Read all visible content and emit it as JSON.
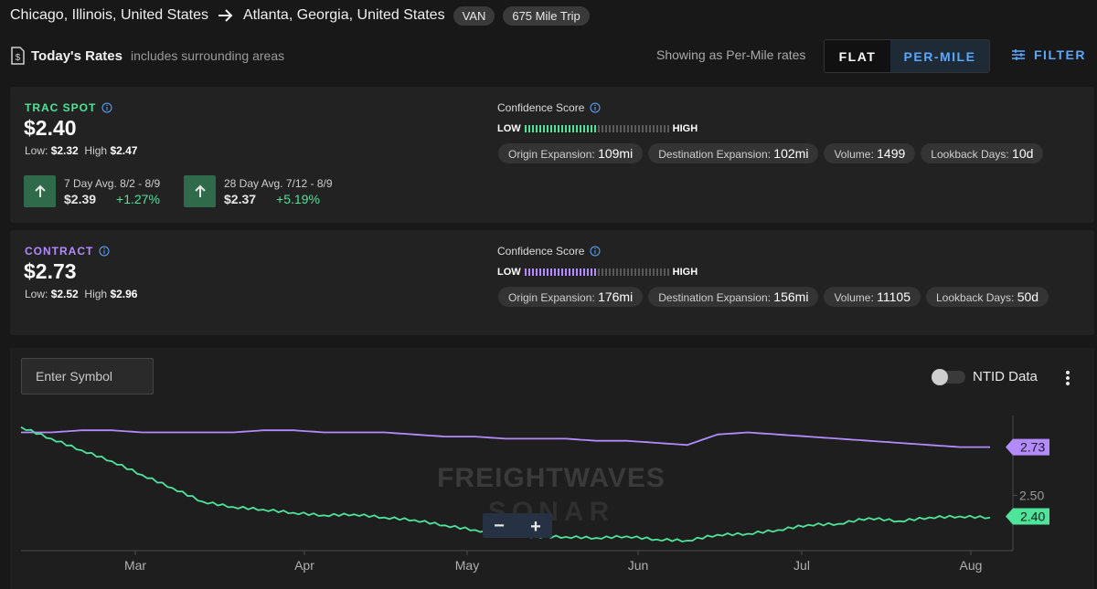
{
  "header": {
    "origin": "Chicago, Illinois, United States",
    "destination": "Atlanta, Georgia, United States",
    "equipment": "VAN",
    "trip": "675 Mile Trip"
  },
  "rates_bar": {
    "title": "Today's Rates",
    "subtitle": "includes surrounding areas",
    "showing": "Showing as Per-Mile rates",
    "flat_label": "FLAT",
    "per_mile_label": "PER-MILE",
    "filter_label": "FILTER"
  },
  "spot": {
    "label": "TRAC SPOT",
    "price": "$2.40",
    "low_label": "Low:",
    "low": "$2.32",
    "high_label": "High",
    "high": "$2.47",
    "avg7_title": "7 Day Avg. 8/2 - 8/9",
    "avg7_value": "$2.39",
    "avg7_pct": "+1.27%",
    "avg28_title": "28 Day Avg. 7/12 - 8/9",
    "avg28_value": "$2.37",
    "avg28_pct": "+5.19%",
    "confidence_label": "Confidence Score",
    "low_word": "LOW",
    "high_word": "HIGH",
    "confidence_level": 0.5,
    "color": "#4ee49a",
    "chips": [
      {
        "label": "Origin Expansion:",
        "value": "109mi"
      },
      {
        "label": "Destination Expansion:",
        "value": "102mi"
      },
      {
        "label": "Volume:",
        "value": "1499"
      },
      {
        "label": "Lookback Days:",
        "value": "10d"
      }
    ]
  },
  "contract": {
    "label": "CONTRACT",
    "price": "$2.73",
    "low_label": "Low:",
    "low": "$2.52",
    "high_label": "High",
    "high": "$2.96",
    "confidence_label": "Confidence Score",
    "low_word": "LOW",
    "high_word": "HIGH",
    "confidence_level": 0.5,
    "color": "#b38bff",
    "chips": [
      {
        "label": "Origin Expansion:",
        "value": "176mi"
      },
      {
        "label": "Destination Expansion:",
        "value": "156mi"
      },
      {
        "label": "Volume:",
        "value": "11105"
      },
      {
        "label": "Lookback Days:",
        "value": "50d"
      }
    ]
  },
  "chart_panel": {
    "symbol_placeholder": "Enter Symbol",
    "ntid_label": "NTID Data",
    "watermark_top": "FREIGHTWAVES",
    "watermark_bottom": "SONAR",
    "zoom_out": "−",
    "zoom_in": "+"
  },
  "chart_data": {
    "type": "line",
    "x_labels": [
      "Mar",
      "Apr",
      "May",
      "Jun",
      "Jul",
      "Aug"
    ],
    "y_tick_label": "2.50",
    "series": [
      {
        "color": "#b38bff",
        "last_label": "2.73",
        "values": [
          2.8,
          2.8,
          2.81,
          2.81,
          2.8,
          2.8,
          2.8,
          2.8,
          2.81,
          2.81,
          2.8,
          2.8,
          2.8,
          2.79,
          2.78,
          2.78,
          2.77,
          2.77,
          2.77,
          2.76,
          2.76,
          2.75,
          2.74,
          2.79,
          2.8,
          2.79,
          2.78,
          2.77,
          2.76,
          2.75,
          2.74,
          2.73,
          2.73
        ]
      },
      {
        "color": "#4ee49a",
        "last_label": "2.40",
        "values": [
          2.82,
          2.77,
          2.72,
          2.66,
          2.6,
          2.53,
          2.47,
          2.45,
          2.43,
          2.42,
          2.4,
          2.41,
          2.4,
          2.38,
          2.36,
          2.33,
          2.31,
          2.31,
          2.3,
          2.3,
          2.3,
          2.29,
          2.29,
          2.31,
          2.32,
          2.33,
          2.36,
          2.37,
          2.39,
          2.38,
          2.39,
          2.4,
          2.4
        ]
      }
    ]
  }
}
